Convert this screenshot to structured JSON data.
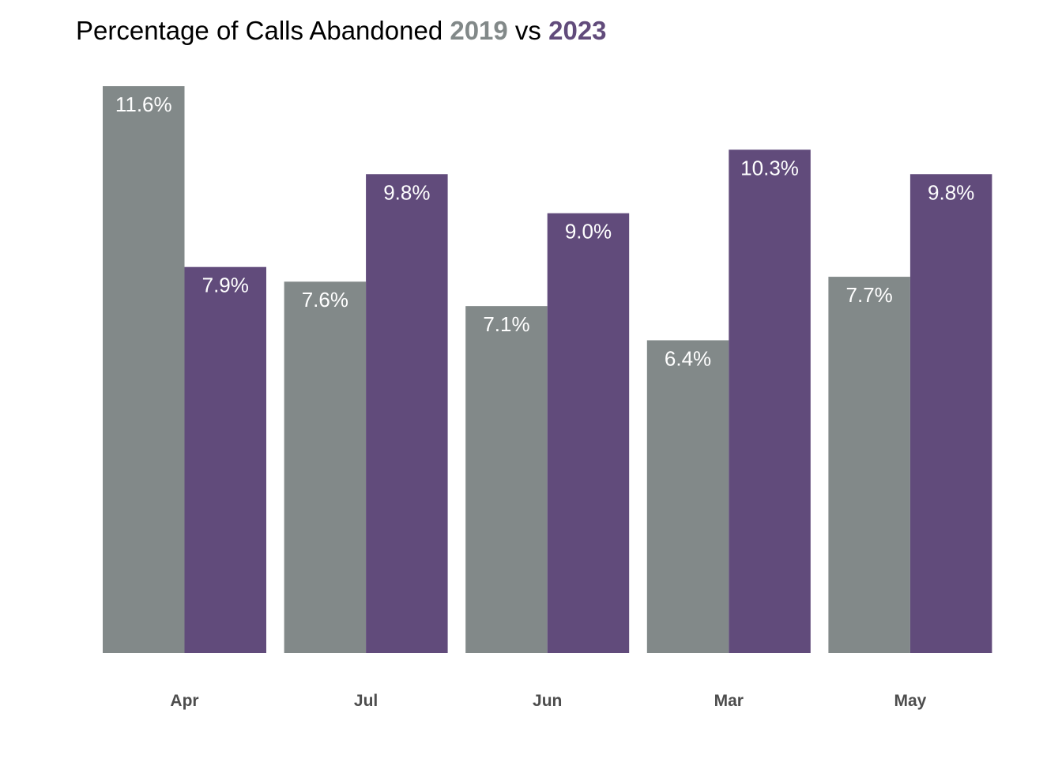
{
  "title": {
    "prefix": "Percentage of Calls Abandoned ",
    "year1": "2019",
    "connector": " vs ",
    "year2": "2023"
  },
  "colors": {
    "series_2019": "#828989",
    "series_2023": "#614b7b"
  },
  "chart_data": {
    "type": "bar",
    "title": "Percentage of Calls Abandoned 2019 vs 2023",
    "categories": [
      "Apr",
      "Jul",
      "Jun",
      "Mar",
      "May"
    ],
    "series": [
      {
        "name": "2019",
        "color": "#828989",
        "values": [
          11.6,
          7.6,
          7.1,
          6.4,
          7.7
        ],
        "labels": [
          "11.6%",
          "7.6%",
          "7.1%",
          "6.4%",
          "7.7%"
        ]
      },
      {
        "name": "2023",
        "color": "#614b7b",
        "values": [
          7.9,
          9.8,
          9.0,
          10.3,
          9.8
        ],
        "labels": [
          "7.9%",
          "9.8%",
          "9.0%",
          "10.3%",
          "9.8%"
        ]
      }
    ],
    "xlabel": "",
    "ylabel": "",
    "ylim": [
      0,
      11.6
    ],
    "grid": false,
    "legend": "none (years colored in title)"
  }
}
